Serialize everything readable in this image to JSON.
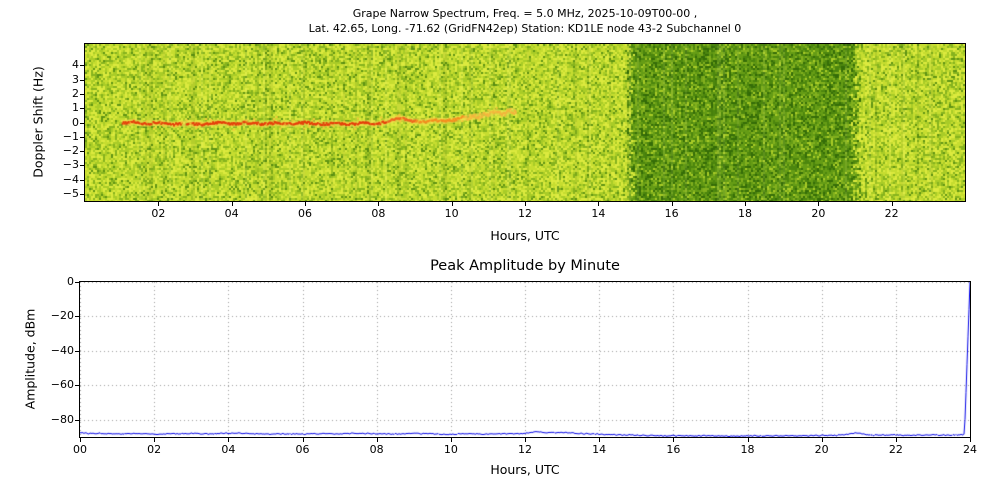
{
  "chart_data": [
    {
      "type": "heatmap",
      "title_line1": "Grape Narrow Spectrum, Freq. = 5.0 MHz, 2025-10-09T00-00 ,",
      "title_line2": "Lat. 42.65, Long. -71.62 (GridFN42ep) Station: KD1LE node 43-2 Subchannel 0",
      "xlabel": "Hours, UTC",
      "ylabel": "Doppler Shift (Hz)",
      "xlim": [
        0,
        24
      ],
      "ylim": [
        -5.5,
        5.5
      ],
      "xticks": [
        {
          "v": 2,
          "label": "02"
        },
        {
          "v": 4,
          "label": "04"
        },
        {
          "v": 6,
          "label": "06"
        },
        {
          "v": 8,
          "label": "08"
        },
        {
          "v": 10,
          "label": "10"
        },
        {
          "v": 12,
          "label": "12"
        },
        {
          "v": 14,
          "label": "14"
        },
        {
          "v": 16,
          "label": "16"
        },
        {
          "v": 18,
          "label": "18"
        },
        {
          "v": 20,
          "label": "20"
        },
        {
          "v": 22,
          "label": "22"
        }
      ],
      "yticks": [
        {
          "v": 4,
          "label": "4"
        },
        {
          "v": 3,
          "label": "3"
        },
        {
          "v": 2,
          "label": "2"
        },
        {
          "v": 1,
          "label": "1"
        },
        {
          "v": 0,
          "label": "0"
        },
        {
          "v": -1,
          "label": "−1"
        },
        {
          "v": -2,
          "label": "−2"
        },
        {
          "v": -3,
          "label": "−3"
        },
        {
          "v": -4,
          "label": "−4"
        },
        {
          "v": -5,
          "label": "−5"
        }
      ],
      "background_description": "dense speckled yellow-green spectral noise across full 24 h",
      "palette_light": {
        "colors": [
          "#dcea3e",
          "#c6dd30",
          "#a9cc27",
          "#86b31e",
          "#5f9414"
        ],
        "weights": [
          0.26,
          0.3,
          0.24,
          0.14,
          0.06
        ]
      },
      "palette_dark": {
        "colors": [
          "#a9cc27",
          "#82b01e",
          "#659c15",
          "#4c860e",
          "#356d08"
        ],
        "weights": [
          0.08,
          0.2,
          0.3,
          0.26,
          0.16
        ]
      },
      "dark_band": {
        "x_start": 14.7,
        "x_end": 21.15,
        "description": "darker green band of reduced signal intensity from ~14:42 to ~21:09 UTC"
      },
      "trace": {
        "description": "red-orange carrier trace near 0 Hz from ~01:00, drifting slightly below 0, rising toward +1 Hz and fading into scatter after ~10:30, ending ~11:45",
        "color_stops": [
          {
            "until": 8.2,
            "color": "#e63c0a"
          },
          {
            "until": 9.0,
            "color": "#f0641e"
          },
          {
            "until": 10.3,
            "color": "#f58c1e"
          },
          {
            "until": 12.0,
            "color": "#f5b43c"
          }
        ],
        "scatter_color": "#f5c83c",
        "halo_color": "rgba(250,220,90,0.35)",
        "points": [
          [
            1.0,
            -0.05
          ],
          [
            1.3,
            0.05
          ],
          [
            1.6,
            -0.1
          ],
          [
            2.0,
            0.0
          ],
          [
            2.4,
            -0.15
          ],
          [
            2.8,
            -0.05
          ],
          [
            3.2,
            -0.15
          ],
          [
            3.6,
            0.0
          ],
          [
            4.0,
            -0.1
          ],
          [
            4.4,
            0.0
          ],
          [
            4.8,
            -0.12
          ],
          [
            5.2,
            -0.03
          ],
          [
            5.6,
            -0.12
          ],
          [
            6.0,
            0.0
          ],
          [
            6.4,
            -0.12
          ],
          [
            6.8,
            -0.05
          ],
          [
            7.2,
            -0.15
          ],
          [
            7.6,
            -0.02
          ],
          [
            8.0,
            -0.1
          ],
          [
            8.3,
            0.15
          ],
          [
            8.6,
            0.3
          ],
          [
            8.9,
            0.1
          ],
          [
            9.2,
            0.05
          ],
          [
            9.5,
            0.15
          ],
          [
            9.8,
            0.1
          ],
          [
            10.1,
            0.2
          ],
          [
            10.4,
            0.35
          ],
          [
            10.7,
            0.45
          ],
          [
            11.0,
            0.6
          ],
          [
            11.2,
            0.75
          ],
          [
            11.4,
            0.6
          ],
          [
            11.6,
            0.85
          ],
          [
            11.75,
            0.7
          ]
        ]
      }
    },
    {
      "type": "line",
      "title": "Peak Amplitude by Minute",
      "xlabel": "Hours, UTC",
      "ylabel": "Amplitude, dBm",
      "xlim": [
        0,
        24
      ],
      "ylim": [
        -90,
        0
      ],
      "grid": true,
      "line_color": "#0000e6",
      "grid_color": "#999999",
      "noise_dbm": 0.7,
      "xticks": [
        {
          "v": 0,
          "label": "00"
        },
        {
          "v": 2,
          "label": "02"
        },
        {
          "v": 4,
          "label": "04"
        },
        {
          "v": 6,
          "label": "06"
        },
        {
          "v": 8,
          "label": "08"
        },
        {
          "v": 10,
          "label": "10"
        },
        {
          "v": 12,
          "label": "12"
        },
        {
          "v": 14,
          "label": "14"
        },
        {
          "v": 16,
          "label": "16"
        },
        {
          "v": 18,
          "label": "18"
        },
        {
          "v": 20,
          "label": "20"
        },
        {
          "v": 22,
          "label": "22"
        },
        {
          "v": 24,
          "label": "24"
        }
      ],
      "yticks": [
        {
          "v": 0,
          "label": "0"
        },
        {
          "v": -20,
          "label": "−20"
        },
        {
          "v": -40,
          "label": "−40"
        },
        {
          "v": -60,
          "label": "−60"
        },
        {
          "v": -80,
          "label": "−80"
        }
      ],
      "series": [
        {
          "name": "peak_amplitude_dbm",
          "points": [
            [
              0,
              -87.3
            ],
            [
              0.2,
              -88.0
            ],
            [
              0.5,
              -87.8
            ],
            [
              1,
              -88.2
            ],
            [
              1.5,
              -88.0
            ],
            [
              2,
              -88.3
            ],
            [
              2.5,
              -88.1
            ],
            [
              3,
              -87.9
            ],
            [
              3.5,
              -88.2
            ],
            [
              4,
              -87.8
            ],
            [
              4.5,
              -88.0
            ],
            [
              5,
              -88.3
            ],
            [
              5.5,
              -88.1
            ],
            [
              6,
              -88.4
            ],
            [
              6.5,
              -88.0
            ],
            [
              7,
              -88.2
            ],
            [
              7.5,
              -87.9
            ],
            [
              8,
              -88.1
            ],
            [
              8.5,
              -88.3
            ],
            [
              9,
              -88.0
            ],
            [
              9.5,
              -88.2
            ],
            [
              10,
              -88.4
            ],
            [
              10.5,
              -88.1
            ],
            [
              11,
              -88.3
            ],
            [
              11.5,
              -88.2
            ],
            [
              12,
              -87.8
            ],
            [
              12.3,
              -87.0
            ],
            [
              12.6,
              -87.6
            ],
            [
              13,
              -87.4
            ],
            [
              13.5,
              -88.0
            ],
            [
              14,
              -88.3
            ],
            [
              14.5,
              -88.7
            ],
            [
              15,
              -89.0
            ],
            [
              15.5,
              -89.3
            ],
            [
              16,
              -89.2
            ],
            [
              16.5,
              -89.4
            ],
            [
              17,
              -89.3
            ],
            [
              17.5,
              -89.5
            ],
            [
              18,
              -89.3
            ],
            [
              18.5,
              -89.4
            ],
            [
              19,
              -89.2
            ],
            [
              19.5,
              -89.3
            ],
            [
              20,
              -89.1
            ],
            [
              20.5,
              -89.0
            ],
            [
              21,
              -87.6
            ],
            [
              21.2,
              -88.8
            ],
            [
              21.5,
              -89.0
            ],
            [
              22,
              -88.9
            ],
            [
              22.5,
              -89.0
            ],
            [
              23,
              -88.8
            ],
            [
              23.5,
              -88.9
            ],
            [
              23.85,
              -88.6
            ],
            [
              24,
              0
            ]
          ]
        }
      ]
    }
  ]
}
